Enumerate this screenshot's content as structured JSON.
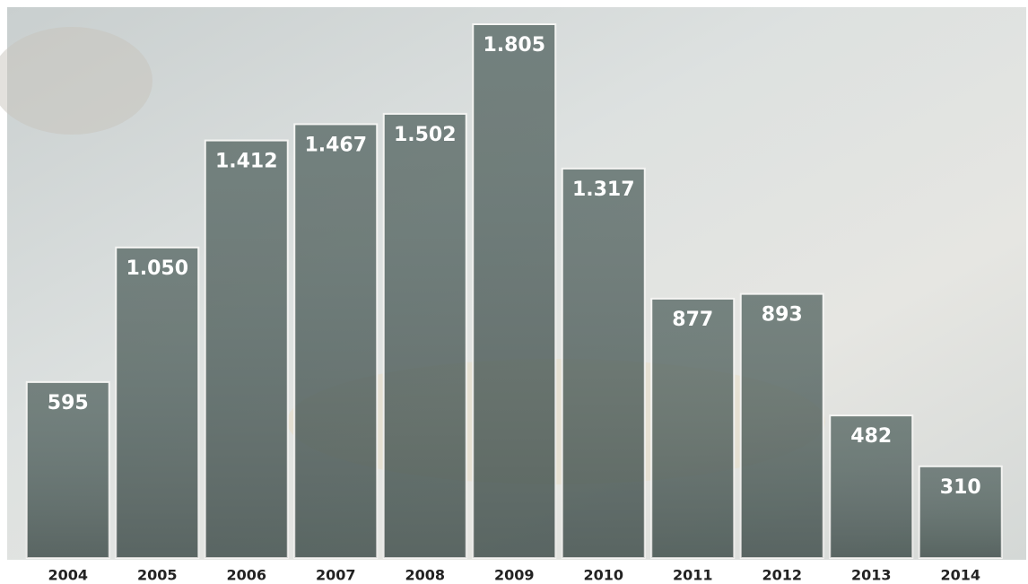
{
  "chart_data": {
    "type": "bar",
    "categories": [
      "2004",
      "2005",
      "2006",
      "2007",
      "2008",
      "2009",
      "2010",
      "2011",
      "2012",
      "2013",
      "2014"
    ],
    "values": [
      595,
      1050,
      1412,
      1467,
      1502,
      1805,
      1317,
      877,
      893,
      482,
      310
    ],
    "value_labels": [
      "595",
      "1.050",
      "1.412",
      "1.467",
      "1.502",
      "1.805",
      "1.317",
      "877",
      "893",
      "482",
      "310"
    ],
    "color": "#4e5f5c"
  }
}
